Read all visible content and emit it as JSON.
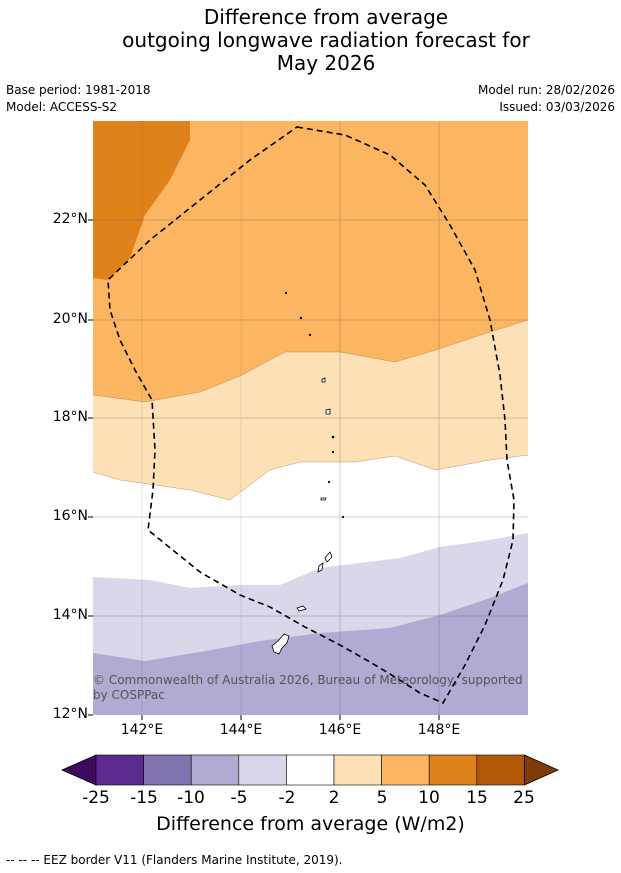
{
  "title_lines": [
    "Difference from average",
    "outgoing longwave radiation forecast for",
    "May 2026"
  ],
  "base_period": "Base period: 1981-2018",
  "model": "Model: ACCESS-S2",
  "model_run": "Model run: 28/02/2026",
  "issued": "Issued: 03/03/2026",
  "y_ticks": [
    "22°N",
    "20°N",
    "18°N",
    "16°N",
    "14°N",
    "12°N"
  ],
  "x_ticks": [
    "142°E",
    "144°E",
    "146°E",
    "148°E"
  ],
  "copyright_lines": [
    "© Commonwealth of Australia 2026, Bureau of Meteorology, supported",
    "by COSPPac"
  ],
  "colorbar": {
    "ticks": [
      "-25",
      "-15",
      "-10",
      "-5",
      "-2",
      "2",
      "5",
      "10",
      "15",
      "25"
    ],
    "colors": [
      "#3f0a5e",
      "#5b2a8e",
      "#8272b0",
      "#b1aad3",
      "#d8d8ea",
      "#ffffff",
      "#fde0b5",
      "#fcb662",
      "#e0821a",
      "#b35806",
      "#7f3b08"
    ],
    "label": "Difference from average (W/m2)"
  },
  "footer": "--  --  -- EEZ border V11 (Flanders Marine Institute, 2019)."
}
